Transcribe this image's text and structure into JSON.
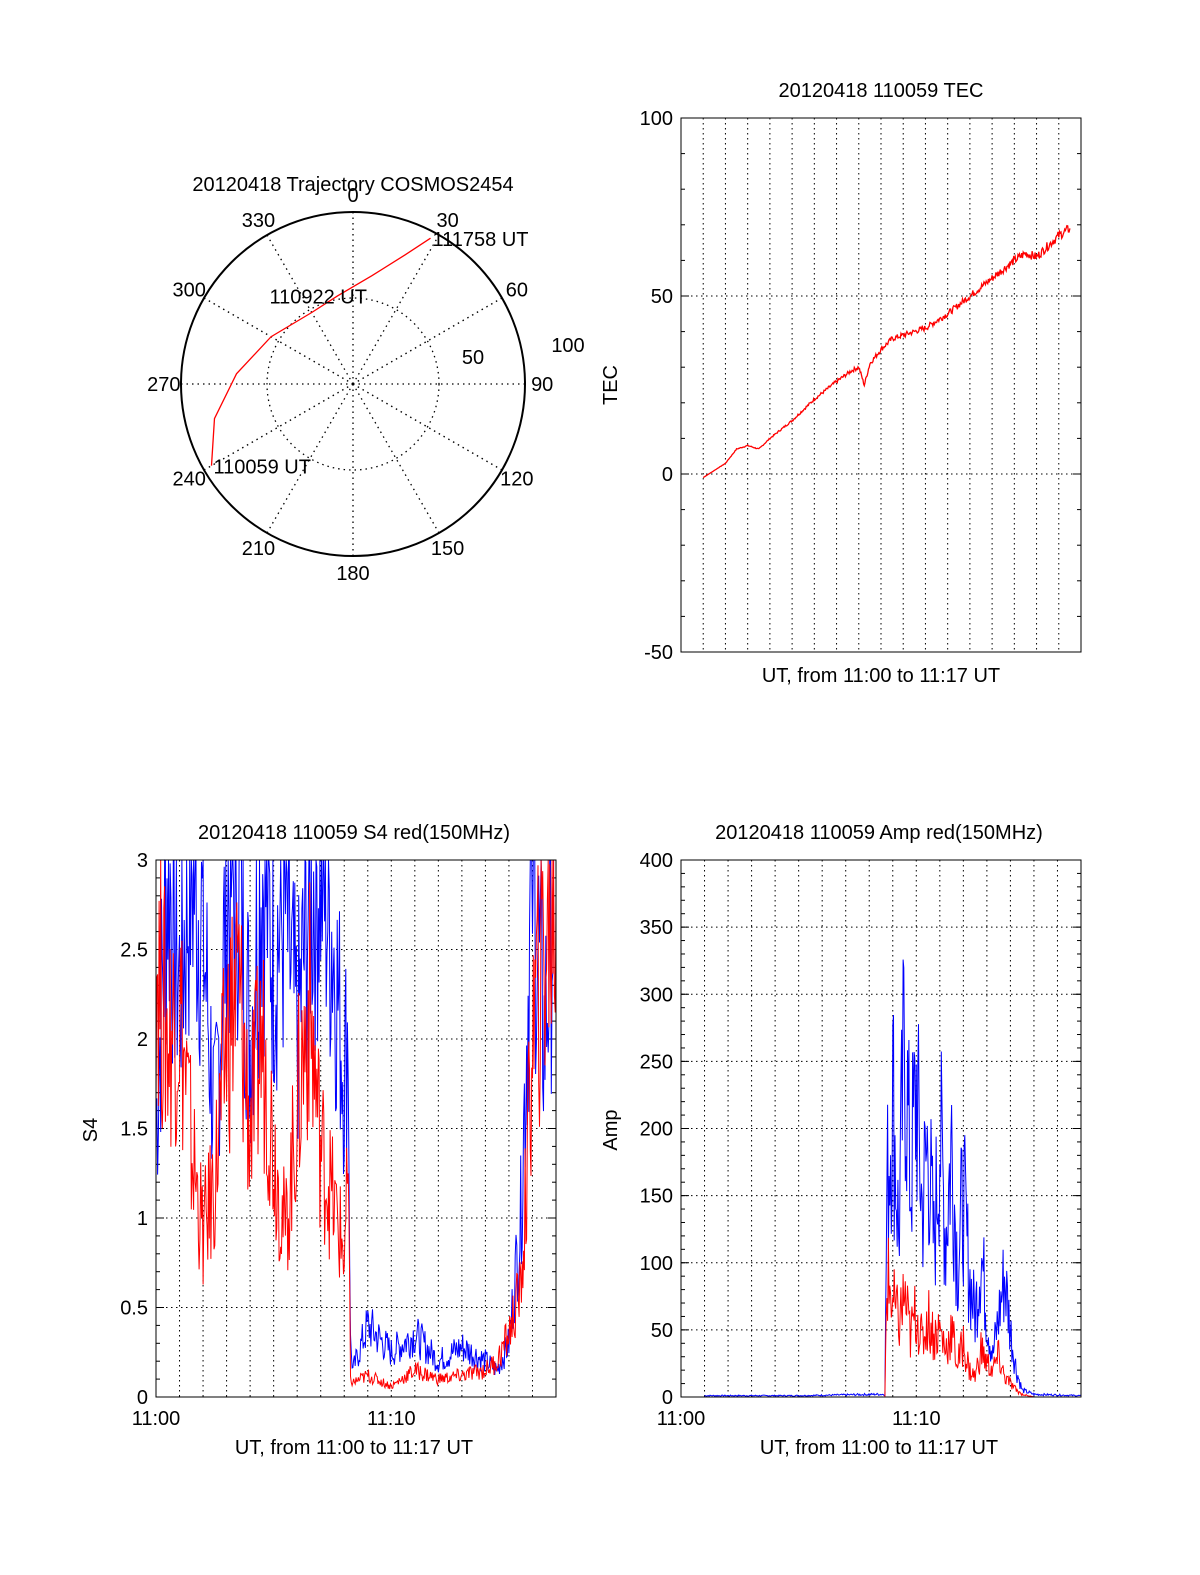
{
  "chart_data": [
    {
      "type": "polar",
      "title": "20120418 Trajectory COSMOS2454",
      "azimuth_labels": [
        "0",
        "30",
        "60",
        "90",
        "120",
        "150",
        "180",
        "210",
        "240",
        "270",
        "300",
        "330"
      ],
      "elevation_ring_labels": [
        "50",
        "100"
      ],
      "series": [
        {
          "color": "#ff0000",
          "points": [
            {
              "az": 240,
              "r": 95
            },
            {
              "az": 256,
              "r": 83
            },
            {
              "az": 275,
              "r": 68
            },
            {
              "az": 300,
              "r": 55
            },
            {
              "az": 330,
              "r": 48
            },
            {
              "az": 350,
              "r": 52
            },
            {
              "az": 10,
              "r": 64
            },
            {
              "az": 22,
              "r": 81
            },
            {
              "az": 28,
              "r": 96
            }
          ]
        }
      ],
      "annotations": [
        {
          "text": "110059 UT",
          "az": 240,
          "r": 95
        },
        {
          "text": "110922 UT",
          "az": 340,
          "r": 40
        },
        {
          "text": "111758 UT",
          "az": 28,
          "r": 96
        }
      ]
    },
    {
      "type": "line",
      "title": "20120418 110059 TEC",
      "xlabel": "UT, from 11:00 to 11:17 UT",
      "ylabel": "TEC",
      "xlim": [
        0,
        1080
      ],
      "ylim": [
        -50,
        100
      ],
      "yticks": [
        -50,
        0,
        50,
        100
      ],
      "grid": true,
      "series": [
        {
          "color": "#ff0000",
          "points": [
            [
              60,
              -1
            ],
            [
              90,
              1
            ],
            [
              120,
              3
            ],
            [
              150,
              7
            ],
            [
              180,
              8
            ],
            [
              210,
              7
            ],
            [
              240,
              10
            ],
            [
              300,
              15
            ],
            [
              360,
              21
            ],
            [
              420,
              26
            ],
            [
              460,
              29
            ],
            [
              480,
              30
            ],
            [
              495,
              25
            ],
            [
              510,
              31
            ],
            [
              540,
              35
            ],
            [
              570,
              38
            ],
            [
              600,
              39
            ],
            [
              660,
              41
            ],
            [
              720,
              45
            ],
            [
              780,
              50
            ],
            [
              840,
              55
            ],
            [
              900,
              60
            ],
            [
              930,
              62
            ],
            [
              960,
              61
            ],
            [
              990,
              64
            ],
            [
              1020,
              67
            ],
            [
              1050,
              69
            ]
          ]
        }
      ]
    },
    {
      "type": "line",
      "title": "20120418 110059 S4 red(150MHz)",
      "xlabel": "UT, from 11:00 to 11:17 UT",
      "ylabel": "S4",
      "xlim": [
        0,
        1020
      ],
      "ylim": [
        0,
        3
      ],
      "yticks": [
        "0",
        "0.5",
        "1",
        "1.5",
        "2",
        "2.5",
        "3"
      ],
      "xticks": [
        "11:00",
        "11:10"
      ],
      "grid": true,
      "series": [
        {
          "color": "#0000ff",
          "points": [
            [
              0,
              1.5
            ],
            [
              30,
              3.0
            ],
            [
              60,
              2.3
            ],
            [
              90,
              3.0
            ],
            [
              120,
              2.6
            ],
            [
              150,
              1.5
            ],
            [
              180,
              2.8
            ],
            [
              210,
              3.0
            ],
            [
              240,
              2.0
            ],
            [
              270,
              3.0
            ],
            [
              300,
              2.5
            ],
            [
              330,
              2.7
            ],
            [
              360,
              2.0
            ],
            [
              390,
              2.8
            ],
            [
              420,
              3.0
            ],
            [
              450,
              2.6
            ],
            [
              480,
              1.8
            ],
            [
              490,
              2.1
            ],
            [
              496,
              0.3
            ],
            [
              502,
              0.15
            ],
            [
              540,
              0.4
            ],
            [
              600,
              0.25
            ],
            [
              660,
              0.35
            ],
            [
              720,
              0.2
            ],
            [
              780,
              0.28
            ],
            [
              840,
              0.2
            ],
            [
              870,
              0.15
            ],
            [
              900,
              0.3
            ],
            [
              930,
              1.0
            ],
            [
              945,
              2.0
            ],
            [
              960,
              3.0
            ],
            [
              990,
              2.0
            ],
            [
              1020,
              3.0
            ]
          ]
        },
        {
          "color": "#ff0000",
          "points": [
            [
              0,
              2.5
            ],
            [
              30,
              2.0
            ],
            [
              60,
              2.2
            ],
            [
              90,
              1.4
            ],
            [
              120,
              0.9
            ],
            [
              150,
              1.2
            ],
            [
              180,
              2.0
            ],
            [
              210,
              2.3
            ],
            [
              240,
              1.5
            ],
            [
              270,
              2.0
            ],
            [
              300,
              1.4
            ],
            [
              330,
              0.9
            ],
            [
              360,
              1.6
            ],
            [
              390,
              2.2
            ],
            [
              420,
              1.4
            ],
            [
              450,
              1.1
            ],
            [
              480,
              0.8
            ],
            [
              490,
              1.2
            ],
            [
              496,
              0.1
            ],
            [
              502,
              0.08
            ],
            [
              540,
              0.12
            ],
            [
              600,
              0.06
            ],
            [
              660,
              0.15
            ],
            [
              720,
              0.1
            ],
            [
              780,
              0.12
            ],
            [
              840,
              0.15
            ],
            [
              870,
              0.2
            ],
            [
              900,
              0.35
            ],
            [
              930,
              0.6
            ],
            [
              945,
              1.2
            ],
            [
              960,
              2.0
            ],
            [
              990,
              2.5
            ],
            [
              1020,
              2.8
            ]
          ]
        }
      ]
    },
    {
      "type": "line",
      "title": "20120418 110059 Amp red(150MHz)",
      "xlabel": "UT, from 11:00 to 11:17 UT",
      "ylabel": "Amp",
      "xlim": [
        0,
        1020
      ],
      "ylim": [
        0,
        400
      ],
      "yticks": [
        "0",
        "50",
        "100",
        "150",
        "200",
        "250",
        "300",
        "350",
        "400"
      ],
      "xticks": [
        "11:00",
        "11:10"
      ],
      "grid": true,
      "series": [
        {
          "color": "#0000ff",
          "points": [
            [
              60,
              1
            ],
            [
              300,
              1
            ],
            [
              500,
              2
            ],
            [
              520,
              2
            ],
            [
              525,
              150
            ],
            [
              540,
              230
            ],
            [
              555,
              120
            ],
            [
              570,
              270
            ],
            [
              585,
              160
            ],
            [
              600,
              230
            ],
            [
              615,
              140
            ],
            [
              630,
              190
            ],
            [
              645,
              110
            ],
            [
              660,
              200
            ],
            [
              675,
              120
            ],
            [
              690,
              190
            ],
            [
              705,
              100
            ],
            [
              720,
              150
            ],
            [
              735,
              90
            ],
            [
              750,
              60
            ],
            [
              765,
              110
            ],
            [
              780,
              60
            ],
            [
              795,
              30
            ],
            [
              810,
              60
            ],
            [
              825,
              90
            ],
            [
              840,
              50
            ],
            [
              855,
              20
            ],
            [
              870,
              5
            ],
            [
              900,
              2
            ],
            [
              1020,
              1
            ]
          ]
        },
        {
          "color": "#ff0000",
          "points": [
            [
              60,
              0
            ],
            [
              300,
              0
            ],
            [
              500,
              0
            ],
            [
              520,
              0
            ],
            [
              525,
              90
            ],
            [
              540,
              70
            ],
            [
              555,
              55
            ],
            [
              570,
              75
            ],
            [
              585,
              45
            ],
            [
              600,
              65
            ],
            [
              615,
              40
            ],
            [
              630,
              60
            ],
            [
              645,
              45
            ],
            [
              660,
              50
            ],
            [
              675,
              35
            ],
            [
              690,
              50
            ],
            [
              705,
              25
            ],
            [
              720,
              40
            ],
            [
              735,
              20
            ],
            [
              750,
              15
            ],
            [
              765,
              35
            ],
            [
              780,
              25
            ],
            [
              795,
              20
            ],
            [
              810,
              30
            ],
            [
              825,
              15
            ],
            [
              840,
              10
            ],
            [
              855,
              5
            ],
            [
              870,
              2
            ],
            [
              900,
              0
            ],
            [
              1020,
              0
            ]
          ]
        }
      ]
    }
  ]
}
